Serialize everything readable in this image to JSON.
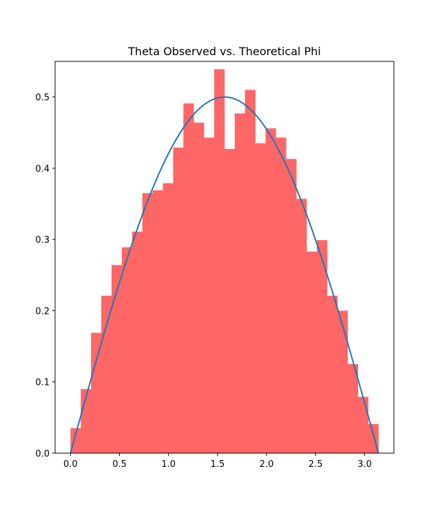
{
  "chart_data": {
    "type": "bar",
    "title": "Theta Observed vs. Theoretical Phi",
    "xlabel": "",
    "ylabel": "",
    "xlim": [
      -0.157,
      3.299
    ],
    "ylim": [
      0.0,
      0.55
    ],
    "x_ticks": [
      0.0,
      0.5,
      1.0,
      1.5,
      2.0,
      2.5,
      3.0
    ],
    "x_tick_labels": [
      "0.0",
      "0.5",
      "1.0",
      "1.5",
      "2.0",
      "2.5",
      "3.0"
    ],
    "y_ticks": [
      0.0,
      0.1,
      0.2,
      0.3,
      0.4,
      0.5
    ],
    "y_tick_labels": [
      "0.0",
      "0.1",
      "0.2",
      "0.3",
      "0.4",
      "0.5"
    ],
    "grid": false,
    "histogram": {
      "bin_start": 0.0,
      "bin_width": 0.1047,
      "values": [
        0.035,
        0.09,
        0.169,
        0.221,
        0.264,
        0.289,
        0.311,
        0.365,
        0.369,
        0.379,
        0.429,
        0.491,
        0.464,
        0.443,
        0.539,
        0.427,
        0.477,
        0.51,
        0.435,
        0.456,
        0.443,
        0.413,
        0.357,
        0.283,
        0.299,
        0.221,
        0.2,
        0.125,
        0.079,
        0.041
      ],
      "color": "#ff6666"
    },
    "curve": {
      "function": "0.5*sin(x)",
      "x_range": [
        0.0,
        3.1416
      ],
      "color": "#1f77b4"
    }
  }
}
